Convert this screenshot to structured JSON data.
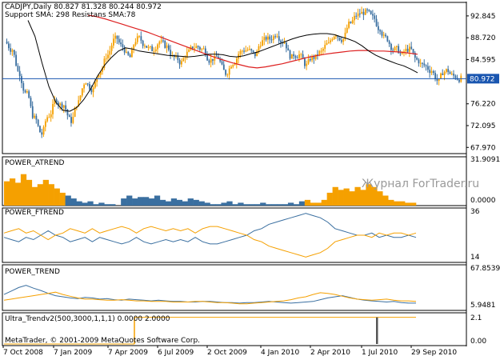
{
  "chart_data": [
    {
      "type": "candlestick",
      "header_line1": "CADJPY,Daily  80.827 81.328 80.244 80.972",
      "header_line2": "Support SMA: 298 Resistans SMA:78",
      "y_ticks": [
        "92.845",
        "88.720",
        "84.595",
        "80.972",
        "76.220",
        "72.095",
        "67.970"
      ],
      "y_tick_values": [
        92.845,
        88.72,
        84.595,
        80.972,
        76.22,
        72.095,
        67.97
      ],
      "ylim": [
        66.8,
        95.4
      ],
      "current_price": "80.972",
      "current_price_value": 80.972,
      "close_series": [
        86.5,
        82.0,
        78.0,
        73.5,
        70.5,
        74.0,
        77.0,
        76.0,
        73.0,
        76.5,
        80.5,
        79.0,
        82.5,
        85.5,
        88.5,
        87.0,
        85.0,
        88.5,
        87.5,
        86.5,
        88.0,
        87.0,
        85.0,
        84.0,
        86.0,
        87.0,
        86.5,
        84.5,
        85.0,
        82.0,
        84.0,
        86.0,
        86.5,
        85.5,
        88.0,
        88.5,
        89.5,
        88.0,
        85.0,
        85.5,
        83.5,
        85.0,
        86.0,
        87.5,
        89.5,
        88.5,
        91.5,
        93.0,
        93.5,
        92.5,
        90.5,
        88.5,
        86.5,
        85.5,
        86.5,
        84.5,
        83.5,
        82.5,
        80.5,
        82.5,
        81.5,
        81.0
      ],
      "sma_resistance_78": [
        92.0,
        89.0,
        84.0,
        79.5,
        76.5,
        75.0,
        74.8,
        75.5,
        77.0,
        79.0,
        81.5,
        83.5,
        85.0,
        86.2,
        86.8,
        86.6,
        86.2,
        86.0,
        85.8,
        85.6,
        85.4,
        85.3,
        85.2,
        85.1,
        85.2,
        85.4,
        85.6,
        85.6,
        85.5,
        85.2,
        85.1,
        85.3,
        85.7,
        86.0,
        86.5,
        87.0,
        87.5,
        88.0,
        88.5,
        88.9,
        89.2,
        89.4,
        89.5,
        89.5,
        89.3,
        88.9,
        88.5,
        88.0,
        87.2,
        86.2,
        85.4,
        84.8,
        84.3,
        83.8,
        83.4,
        82.8,
        82.1
      ],
      "sma_support_298": [
        93.0,
        92.7,
        92.3,
        91.8,
        91.3,
        90.8,
        90.3,
        89.8,
        89.2,
        88.6,
        88.0,
        87.4,
        86.8,
        86.2,
        85.6,
        85.0,
        84.5,
        84.0,
        83.6,
        83.2,
        83.0,
        83.2,
        83.5,
        83.8,
        84.2,
        84.6,
        85.0,
        85.3,
        85.6,
        85.8,
        86.0,
        86.2,
        86.3,
        86.3,
        86.2,
        86.2,
        86.1,
        86.0,
        85.8,
        85.6
      ],
      "grid": false,
      "background": "#ffffff",
      "colors": {
        "bull": "#f5a000",
        "bear": "#3a6fa0",
        "sma78": "#000000",
        "sma298": "#dd2020",
        "level": "#1a56b0"
      }
    },
    {
      "type": "bar",
      "title": "POWER_ATREND",
      "y_ticks": [
        "31.9091",
        "0.0000"
      ],
      "ylim": [
        0,
        31.9091
      ],
      "values": [
        17,
        19,
        16,
        22,
        18,
        13,
        15,
        18,
        15,
        12,
        9,
        7,
        5,
        3,
        2,
        3,
        1,
        2,
        1,
        1,
        0,
        5,
        7,
        5,
        6,
        6,
        5,
        7,
        4,
        3,
        5,
        4,
        3,
        5,
        4,
        3,
        2,
        1,
        1,
        2,
        3,
        1,
        2,
        1,
        1,
        1,
        2,
        1,
        1,
        1,
        1,
        2,
        1,
        3,
        4,
        2,
        2,
        4,
        9,
        13,
        11,
        12,
        10,
        13,
        11,
        15,
        13,
        10,
        7,
        4,
        3,
        3,
        2,
        2
      ],
      "bar_color_switch": [
        0,
        10,
        "#f5a000",
        11,
        53,
        "#3a6fa0",
        54,
        73,
        "#f5a000"
      ]
    },
    {
      "type": "line",
      "title": "POWER_FTREND",
      "y_ticks": [
        "36",
        "14"
      ],
      "ylim": [
        14,
        36
      ],
      "series": [
        {
          "color": "#3a6fa0",
          "values": [
            24,
            23,
            22,
            24,
            23,
            25,
            27,
            25,
            24,
            22,
            23,
            24,
            22,
            24,
            23,
            22,
            21,
            22,
            24,
            22,
            21,
            22,
            23,
            22,
            23,
            22,
            24,
            22,
            21,
            21,
            22,
            23,
            24,
            25,
            27,
            28,
            30,
            31,
            32,
            33,
            34,
            35,
            34,
            33,
            31,
            28,
            27,
            26,
            25,
            25,
            26,
            24,
            25,
            24,
            24,
            25,
            24
          ]
        },
        {
          "color": "#f5a000",
          "values": [
            26,
            27,
            28,
            26,
            27,
            25,
            23,
            25,
            26,
            28,
            27,
            26,
            28,
            26,
            27,
            28,
            29,
            28,
            26,
            28,
            29,
            28,
            27,
            28,
            27,
            28,
            26,
            28,
            29,
            29,
            28,
            27,
            26,
            25,
            23,
            22,
            20,
            19,
            18,
            17,
            16,
            15,
            16,
            17,
            19,
            22,
            23,
            24,
            25,
            25,
            24,
            26,
            25,
            26,
            26,
            25,
            26
          ]
        }
      ]
    },
    {
      "type": "line",
      "title": "POWER_TREND",
      "y_ticks": [
        "67.8539",
        "5.9481"
      ],
      "ylim": [
        0,
        67.8539
      ],
      "series": [
        {
          "color": "#3a6fa0",
          "values": [
            22,
            28,
            34,
            38,
            33,
            29,
            24,
            20,
            18,
            16,
            15,
            17,
            16,
            14,
            15,
            13,
            12,
            14,
            13,
            12,
            11,
            12,
            11,
            10,
            10,
            9,
            9,
            10,
            10,
            9,
            8,
            8,
            7,
            8,
            8,
            9,
            10,
            9,
            8,
            7,
            8,
            9,
            10,
            13,
            16,
            18,
            20,
            17,
            14,
            12,
            11,
            10,
            9,
            10,
            8,
            7,
            7
          ]
        },
        {
          "color": "#f5a000",
          "values": [
            12,
            14,
            16,
            18,
            20,
            22,
            24,
            26,
            22,
            19,
            16,
            14,
            14,
            13,
            12,
            12,
            13,
            12,
            11,
            11,
            10,
            10,
            10,
            9,
            9,
            9,
            10,
            10,
            9,
            8,
            8,
            7,
            6,
            6,
            7,
            8,
            9,
            10,
            11,
            13,
            16,
            18,
            22,
            25,
            24,
            22,
            19,
            16,
            14,
            13,
            12,
            13,
            14,
            12,
            11,
            11,
            10
          ]
        }
      ]
    },
    {
      "type": "line",
      "title": "Ultra_Trendv2(500,3000,1,1,1) 0.0000 2.0000",
      "y_ticks": [
        "2.1",
        "0.00"
      ],
      "ylim": [
        0,
        2.1
      ],
      "series": [
        {
          "color": "#f5a000",
          "values": [
            0,
            0,
            2,
            2,
            2,
            2,
            2,
            2,
            2,
            2,
            2,
            2,
            2,
            2,
            2,
            2,
            2,
            2,
            2,
            2,
            2
          ]
        }
      ],
      "spikes": [
        2,
        1
      ]
    }
  ],
  "x_axis": {
    "labels": [
      "7 Oct 2008",
      "7 Jan 2009",
      "7 Apr 2009",
      "6 Jul 2009",
      "2 Oct 2009",
      "4 Jan 2010",
      "2 Apr 2010",
      "1 Jul 2010",
      "29 Sep 2010"
    ]
  },
  "watermark": "Журнал ForTrader.ru",
  "copyright": "MetaTrader, © 2001-2009 MetaQuotes Software Corp."
}
